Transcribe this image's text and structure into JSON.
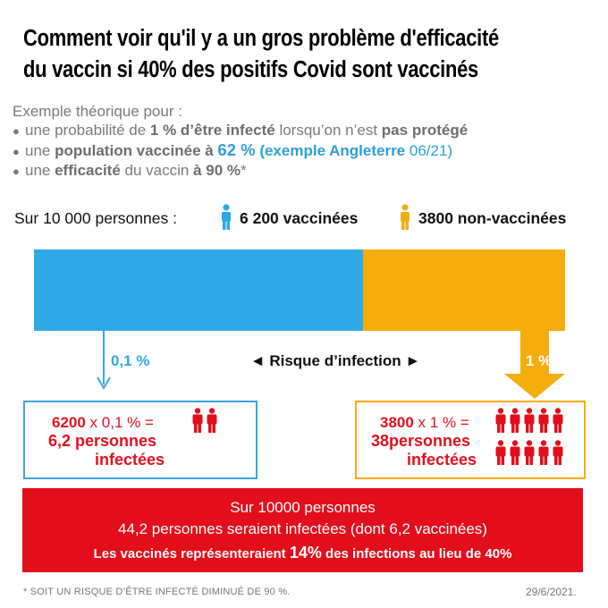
{
  "title": {
    "line1": "Comment voir qu'il y a un gros problème d'efficacité",
    "line2": "du vaccin si 40% des positifs Covid sont vaccinés"
  },
  "intro": {
    "heading": "Exemple théorique pour :",
    "b1": {
      "p1": "une probabilité de ",
      "s1": "1 % d’être infecté",
      "p2": " lorsqu’on n’est ",
      "s2": "pas protégé"
    },
    "b2": {
      "p1": "une ",
      "s1": "population vaccinée à ",
      "h1": "62 %",
      "h2": " (exemple Angleterre ",
      "h3": "06/21)"
    },
    "b3": {
      "p1": "une ",
      "s1": "efficacité",
      "p2": " du vaccin ",
      "s2": "à 90 %",
      "p3": "*"
    }
  },
  "counts": {
    "label": "Sur 10 000 personnes :",
    "vaccinated": "6 200 vaccinées",
    "unvaccinated": "3800 non-vaccinées"
  },
  "split": {
    "vaccinated_share": 0.62,
    "unvaccinated_share": 0.38
  },
  "risk": {
    "label": "◄ Risque d’infection ►",
    "vaccinated_pct": "0,1 %",
    "unvaccinated_pct": "1 %"
  },
  "box_vaccinated": {
    "n": "6200",
    "op": " x 0,1 % =",
    "result": "6,2 personnes",
    "result2": "infectées",
    "people_icons": 2
  },
  "box_unvaccinated": {
    "n": "3800",
    "op": " x 1 % =",
    "result": "38personnes",
    "result2": "infectées",
    "people_icons": 10
  },
  "summary": {
    "line1": "Sur 10000 personnes",
    "line2": "44,2 personnes seraient infectées (dont 6,2 vaccinées)",
    "line3_a": "Les vaccinés représenteraient ",
    "line3_b": "14%",
    "line3_c": " des infections au lieu de 40%"
  },
  "footnote": "* SOIT UN RISQUE D’ÊTRE INFECTÉ DIMINUÉ DE 90 %.",
  "date": "29/6/2021.",
  "colors": {
    "blue": "#2fa8e6",
    "orange": "#f5ad0e",
    "red": "#e30e1b"
  }
}
